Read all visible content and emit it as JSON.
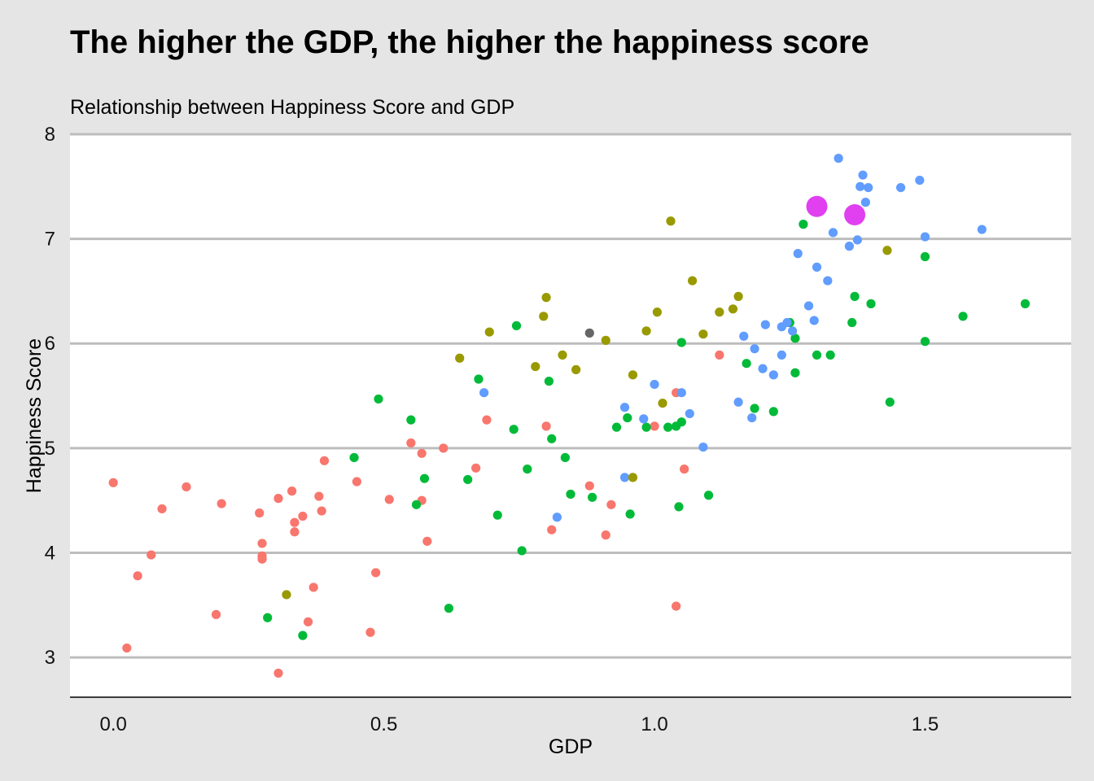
{
  "chart_data": {
    "type": "scatter",
    "title": "The higher the GDP, the higher the happiness score",
    "subtitle": "Relationship between Happiness Score and GDP",
    "xlabel": "GDP",
    "ylabel": "Happiness Score",
    "xlim": [
      -0.08,
      1.77
    ],
    "ylim": [
      2.62,
      8.0
    ],
    "x_ticks": [
      0.0,
      0.5,
      1.0,
      1.5
    ],
    "x_tick_labels": [
      "0.0",
      "0.5",
      "1.0",
      "1.5"
    ],
    "y_ticks": [
      3,
      4,
      5,
      6,
      7,
      8
    ],
    "y_tick_labels": [
      "3",
      "4",
      "5",
      "6",
      "7",
      "8"
    ],
    "grid": "horizontal",
    "legend": "none",
    "background_color": "#e5e5e5",
    "panel_color": "#ffffff",
    "grid_color": "#bdbdbd",
    "series": [
      {
        "color": "#f8766d",
        "points": [
          [
            0.0,
            4.67
          ],
          [
            0.025,
            3.09
          ],
          [
            0.045,
            3.78
          ],
          [
            0.07,
            3.98
          ],
          [
            0.09,
            4.42
          ],
          [
            0.135,
            4.63
          ],
          [
            0.19,
            3.41
          ],
          [
            0.2,
            4.47
          ],
          [
            0.27,
            4.38
          ],
          [
            0.275,
            4.09
          ],
          [
            0.275,
            3.97
          ],
          [
            0.275,
            3.94
          ],
          [
            0.305,
            4.52
          ],
          [
            0.305,
            2.85
          ],
          [
            0.33,
            4.59
          ],
          [
            0.335,
            4.2
          ],
          [
            0.335,
            4.29
          ],
          [
            0.35,
            4.35
          ],
          [
            0.36,
            3.34
          ],
          [
            0.37,
            3.67
          ],
          [
            0.38,
            4.54
          ],
          [
            0.385,
            4.4
          ],
          [
            0.39,
            4.88
          ],
          [
            0.45,
            4.68
          ],
          [
            0.475,
            3.24
          ],
          [
            0.485,
            3.81
          ],
          [
            0.51,
            4.51
          ],
          [
            0.55,
            5.05
          ],
          [
            0.57,
            4.95
          ],
          [
            0.57,
            4.5
          ],
          [
            0.58,
            4.11
          ],
          [
            0.61,
            5.0
          ],
          [
            0.67,
            4.81
          ],
          [
            0.69,
            5.27
          ],
          [
            0.8,
            5.21
          ],
          [
            0.81,
            4.22
          ],
          [
            0.88,
            4.64
          ],
          [
            0.91,
            4.17
          ],
          [
            0.92,
            4.46
          ],
          [
            1.0,
            5.21
          ],
          [
            1.04,
            5.53
          ],
          [
            1.04,
            3.49
          ],
          [
            1.055,
            4.8
          ],
          [
            1.12,
            5.89
          ]
        ]
      },
      {
        "color": "#00ba38",
        "points": [
          [
            0.285,
            3.38
          ],
          [
            0.35,
            3.21
          ],
          [
            0.445,
            4.91
          ],
          [
            0.49,
            5.47
          ],
          [
            0.55,
            5.27
          ],
          [
            0.56,
            4.46
          ],
          [
            0.575,
            4.71
          ],
          [
            0.62,
            3.47
          ],
          [
            0.655,
            4.7
          ],
          [
            0.675,
            5.66
          ],
          [
            0.71,
            4.36
          ],
          [
            0.74,
            5.18
          ],
          [
            0.745,
            6.17
          ],
          [
            0.755,
            4.02
          ],
          [
            0.765,
            4.8
          ],
          [
            0.805,
            5.64
          ],
          [
            0.81,
            5.09
          ],
          [
            0.835,
            4.91
          ],
          [
            0.845,
            4.56
          ],
          [
            0.885,
            4.53
          ],
          [
            0.93,
            5.2
          ],
          [
            0.95,
            5.29
          ],
          [
            0.955,
            4.37
          ],
          [
            0.985,
            5.2
          ],
          [
            1.025,
            5.2
          ],
          [
            1.04,
            5.21
          ],
          [
            1.045,
            4.44
          ],
          [
            1.05,
            5.25
          ],
          [
            1.05,
            6.01
          ],
          [
            1.1,
            4.55
          ],
          [
            1.17,
            5.81
          ],
          [
            1.185,
            5.38
          ],
          [
            1.22,
            5.35
          ],
          [
            1.25,
            6.2
          ],
          [
            1.26,
            6.05
          ],
          [
            1.26,
            5.72
          ],
          [
            1.275,
            7.14
          ],
          [
            1.3,
            5.89
          ],
          [
            1.325,
            5.89
          ],
          [
            1.365,
            6.2
          ],
          [
            1.37,
            6.45
          ],
          [
            1.4,
            6.38
          ],
          [
            1.435,
            5.44
          ],
          [
            1.5,
            6.02
          ],
          [
            1.5,
            6.83
          ],
          [
            1.57,
            6.26
          ],
          [
            1.685,
            6.38
          ]
        ]
      },
      {
        "color": "#619cff",
        "points": [
          [
            0.685,
            5.53
          ],
          [
            0.82,
            4.34
          ],
          [
            0.945,
            5.39
          ],
          [
            0.945,
            4.72
          ],
          [
            0.98,
            5.28
          ],
          [
            1.0,
            5.61
          ],
          [
            1.05,
            5.53
          ],
          [
            1.065,
            5.33
          ],
          [
            1.09,
            5.01
          ],
          [
            1.155,
            5.44
          ],
          [
            1.165,
            6.07
          ],
          [
            1.18,
            5.29
          ],
          [
            1.185,
            5.95
          ],
          [
            1.2,
            5.76
          ],
          [
            1.205,
            6.18
          ],
          [
            1.22,
            5.7
          ],
          [
            1.235,
            5.89
          ],
          [
            1.235,
            6.16
          ],
          [
            1.245,
            6.2
          ],
          [
            1.255,
            6.12
          ],
          [
            1.265,
            6.86
          ],
          [
            1.285,
            6.36
          ],
          [
            1.295,
            6.22
          ],
          [
            1.3,
            6.73
          ],
          [
            1.32,
            6.6
          ],
          [
            1.33,
            7.06
          ],
          [
            1.34,
            7.77
          ],
          [
            1.36,
            6.93
          ],
          [
            1.375,
            6.99
          ],
          [
            1.38,
            7.5
          ],
          [
            1.385,
            7.61
          ],
          [
            1.39,
            7.35
          ],
          [
            1.395,
            7.49
          ],
          [
            1.455,
            7.49
          ],
          [
            1.49,
            7.56
          ],
          [
            1.5,
            7.02
          ],
          [
            1.605,
            7.09
          ]
        ]
      },
      {
        "color": "#999900",
        "points": [
          [
            0.32,
            3.6
          ],
          [
            0.64,
            5.86
          ],
          [
            0.695,
            6.11
          ],
          [
            0.78,
            5.78
          ],
          [
            0.795,
            6.26
          ],
          [
            0.8,
            6.44
          ],
          [
            0.83,
            5.89
          ],
          [
            0.855,
            5.75
          ],
          [
            0.91,
            6.03
          ],
          [
            0.96,
            5.7
          ],
          [
            0.96,
            4.72
          ],
          [
            0.985,
            6.12
          ],
          [
            1.005,
            6.3
          ],
          [
            1.015,
            5.43
          ],
          [
            1.03,
            7.17
          ],
          [
            1.07,
            6.6
          ],
          [
            1.09,
            6.09
          ],
          [
            1.12,
            6.3
          ],
          [
            1.145,
            6.33
          ],
          [
            1.155,
            6.45
          ],
          [
            1.43,
            6.89
          ]
        ]
      },
      {
        "color": "#666666",
        "points": [
          [
            0.88,
            6.1
          ]
        ]
      },
      {
        "color": "#e040f0",
        "highlight": true,
        "points": [
          [
            1.3,
            7.31
          ],
          [
            1.37,
            7.23
          ]
        ]
      }
    ]
  }
}
